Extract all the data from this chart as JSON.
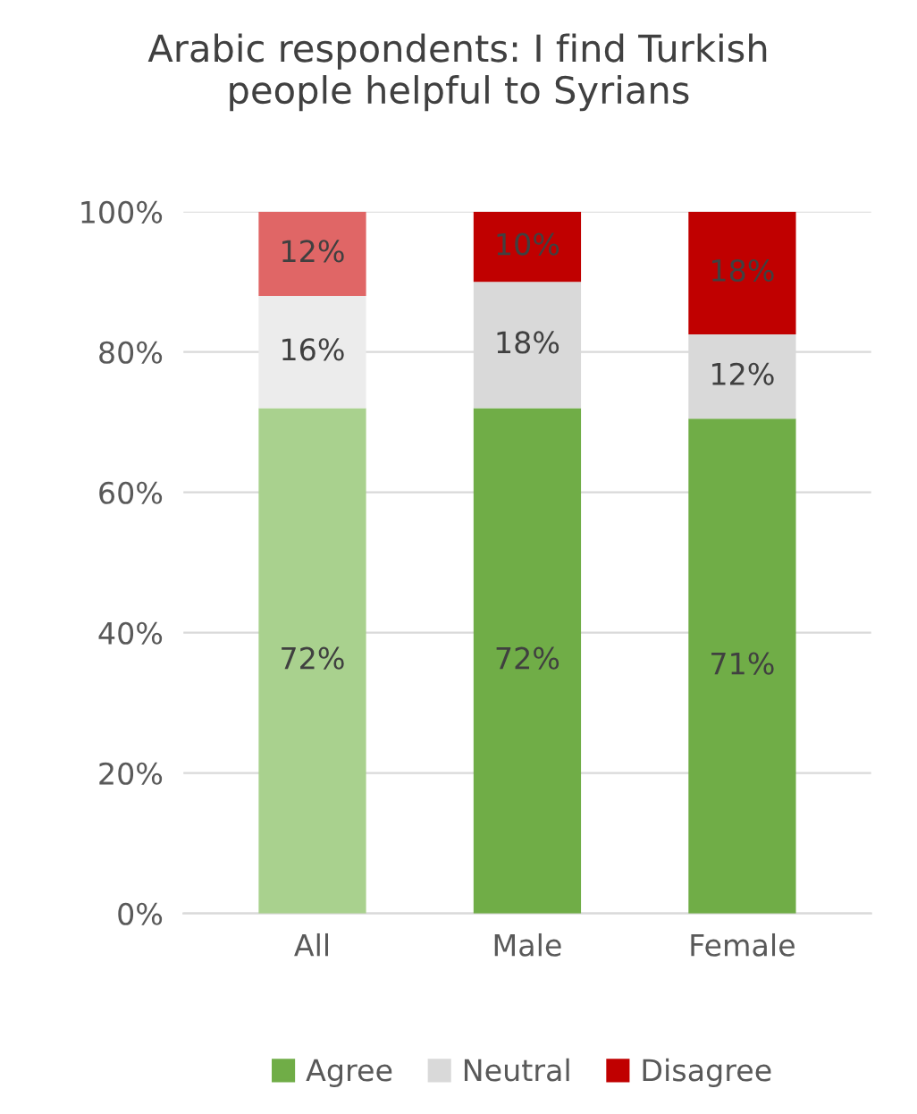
{
  "chart_data": {
    "type": "bar",
    "title": "Arabic respondents: I find Turkish\npeople helpful to Syrians",
    "categories": [
      "All",
      "Male",
      "Female"
    ],
    "stacked": true,
    "series": [
      {
        "name": "Agree",
        "color": "#70ad47",
        "colors": [
          "#a9d18e",
          "#70ad47",
          "#70ad47"
        ],
        "values": [
          72,
          72,
          70.5
        ],
        "value_labels": [
          "72%",
          "72%",
          "71%"
        ]
      },
      {
        "name": "Neutral",
        "color": "#d9d9d9",
        "colors": [
          "#ececec",
          "#d9d9d9",
          "#d9d9d9"
        ],
        "values": [
          16,
          18,
          12
        ],
        "value_labels": [
          "16%",
          "18%",
          "12%"
        ]
      },
      {
        "name": "Disagree",
        "color": "#c00000",
        "colors": [
          "#e06666",
          "#c00000",
          "#c00000"
        ],
        "values": [
          12,
          10,
          17.5
        ],
        "value_labels": [
          "12%",
          "10%",
          "18%"
        ]
      }
    ],
    "ylim": [
      0,
      100
    ],
    "yticks": [
      {
        "value": 0,
        "label": "0%"
      },
      {
        "value": 20,
        "label": "20%"
      },
      {
        "value": 40,
        "label": "40%"
      },
      {
        "value": 60,
        "label": "60%"
      },
      {
        "value": 80,
        "label": "80%"
      },
      {
        "value": 100,
        "label": "100%"
      }
    ],
    "grid": "y",
    "legend": "bottom"
  }
}
